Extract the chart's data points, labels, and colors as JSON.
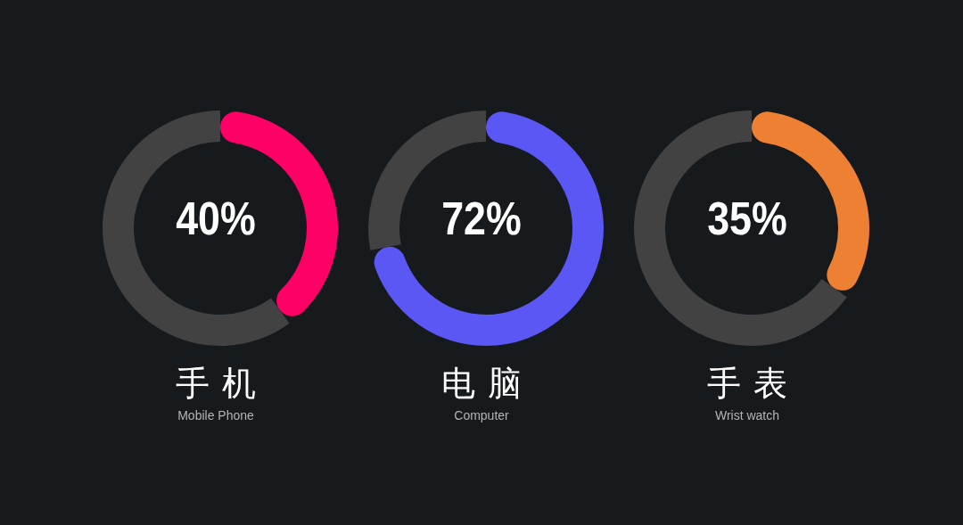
{
  "chart_data": [
    {
      "type": "donut",
      "title": "手机",
      "subtitle": "Mobile Phone",
      "categories": [
        null,
        null
      ],
      "values": [
        40,
        60
      ],
      "colors": [
        "#ff0066",
        "#424242"
      ],
      "annotations": [
        "40%"
      ]
    },
    {
      "type": "donut",
      "title": "电脑",
      "subtitle": "Computer",
      "categories": [
        null,
        null
      ],
      "values": [
        72,
        28
      ],
      "colors": [
        "#5b57f5",
        "#424242"
      ],
      "annotations": [
        "72%"
      ]
    },
    {
      "type": "donut",
      "title": "手表",
      "subtitle": "Wrist watch",
      "categories": [
        null,
        null
      ],
      "values": [
        35,
        65
      ],
      "colors": [
        "#ee8033",
        "#424242"
      ],
      "annotations": [
        "35%"
      ]
    }
  ]
}
